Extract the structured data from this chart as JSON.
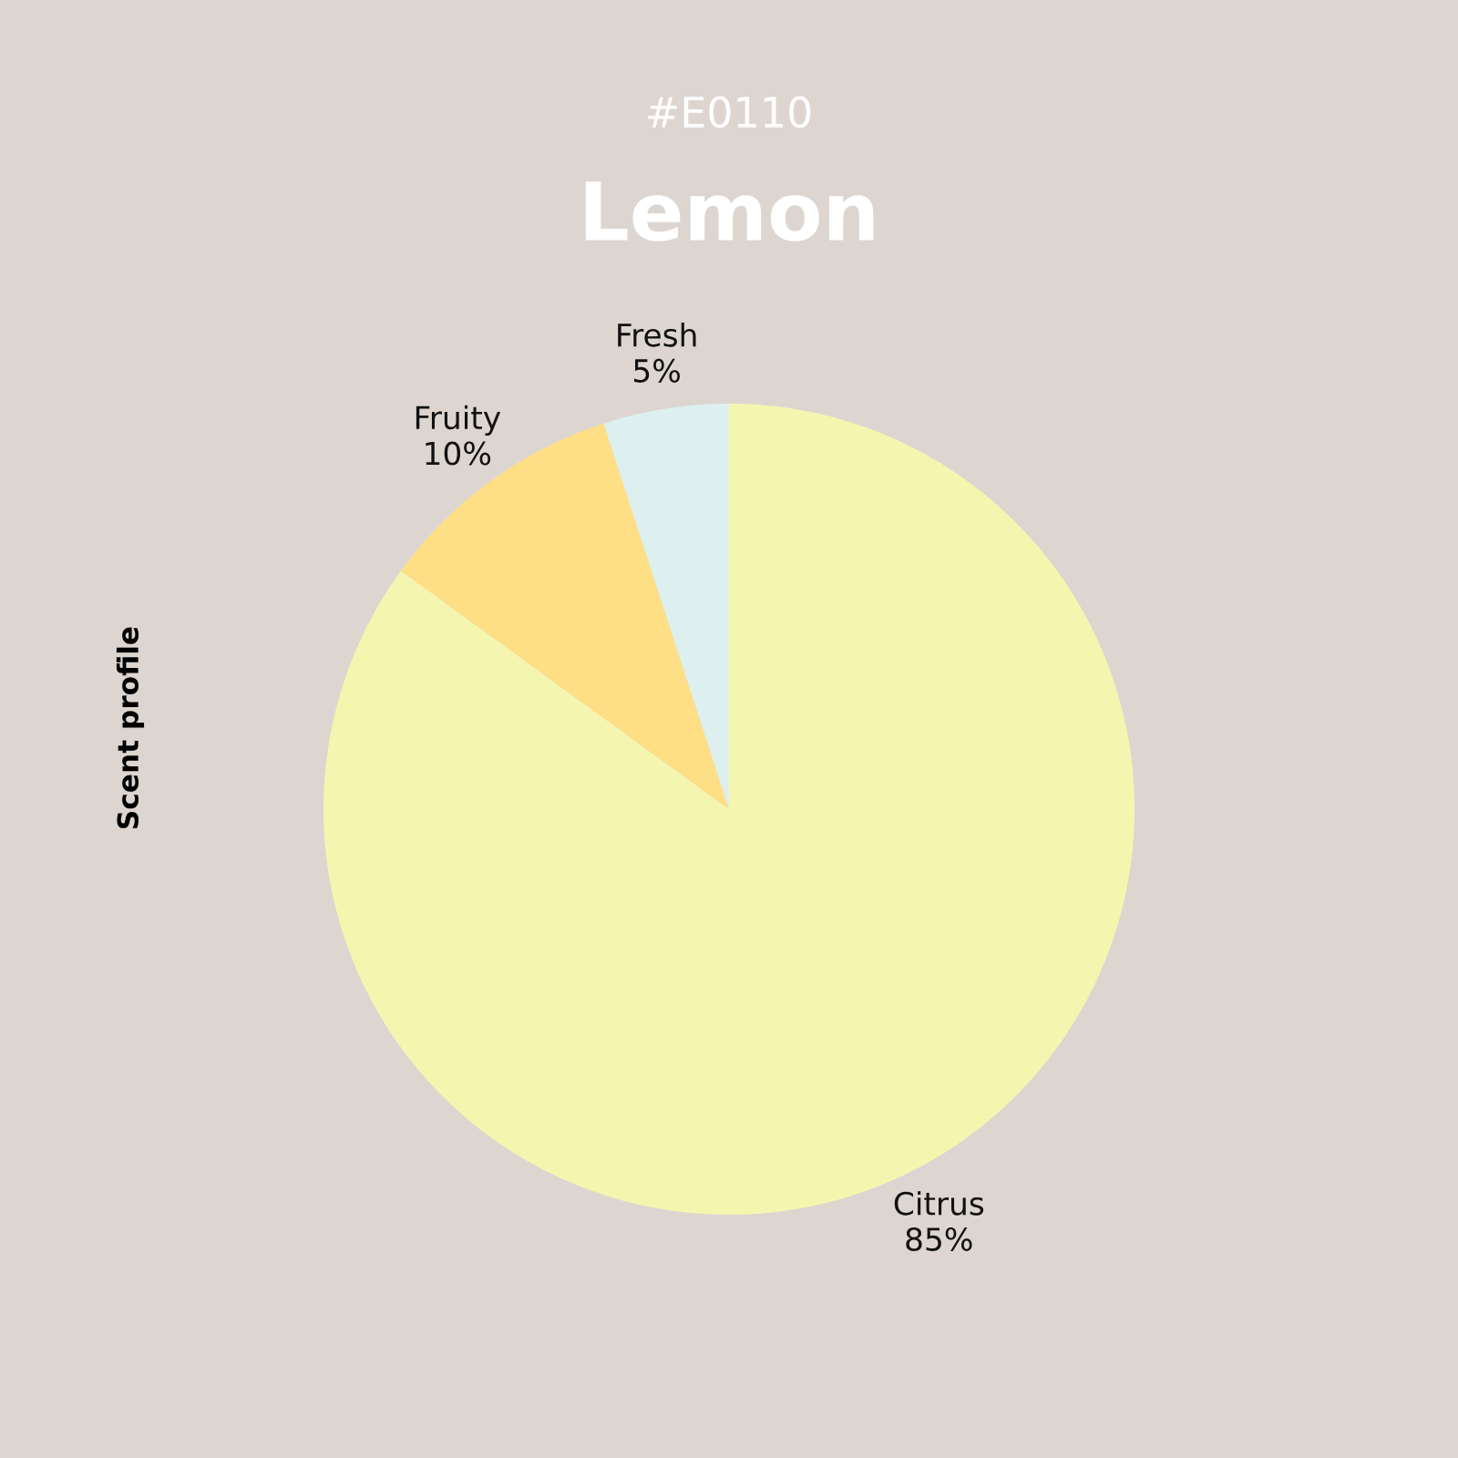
{
  "chart_data": {
    "type": "pie",
    "title": "Lemon",
    "subtitle": "#E0110",
    "ylabel": "Scent profile",
    "categories": [
      "Citrus",
      "Fruity",
      "Fresh"
    ],
    "values": [
      85,
      10,
      5
    ],
    "colors": [
      "#f4f6b0",
      "#ffdf86",
      "#ddf0ef"
    ],
    "value_labels": [
      "85%",
      "10%",
      "5%"
    ]
  }
}
